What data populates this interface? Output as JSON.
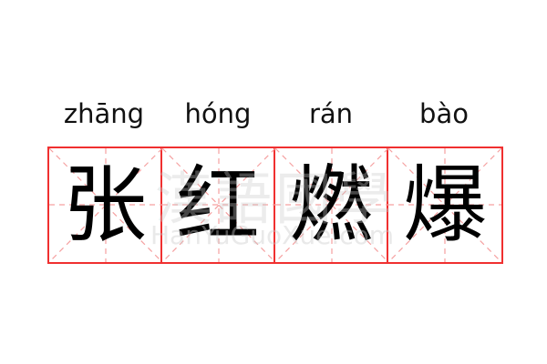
{
  "pinyin": [
    "zhāng",
    "hóng",
    "rán",
    "bào"
  ],
  "characters": [
    "张",
    "红",
    "燃",
    "爆"
  ],
  "watermark": {
    "text": "漢語國學",
    "url": "HanYuGuoXue.com"
  },
  "colors": {
    "grid": "#f03030",
    "guide": "#f5a0a0",
    "text": "#000000"
  }
}
